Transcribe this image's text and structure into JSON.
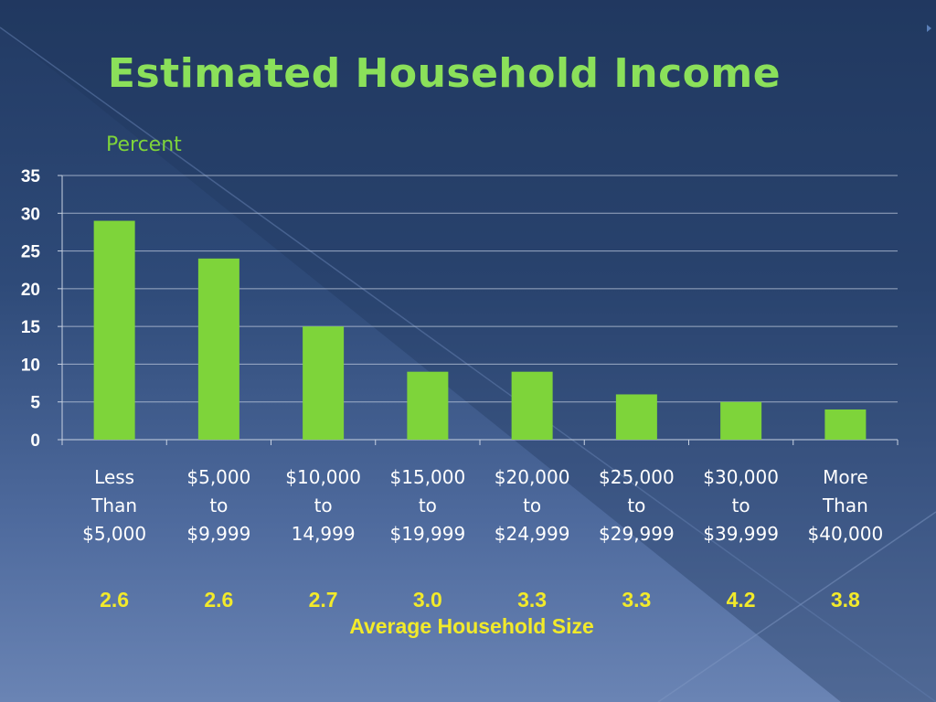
{
  "slide": {
    "title": "Estimated Household Income",
    "subtitle_label": "Average Household Size",
    "accent_color": "#7ed43a",
    "size_color": "#f2ea2a"
  },
  "chart_data": {
    "type": "bar",
    "ylabel": "Percent",
    "xlabel": "",
    "ylim": [
      0,
      35
    ],
    "yticks": [
      0,
      5,
      10,
      15,
      20,
      25,
      30,
      35
    ],
    "grid": true,
    "categories": [
      [
        "Less",
        "Than",
        "$5,000"
      ],
      [
        "$5,000",
        "to",
        "$9,999"
      ],
      [
        "$10,000",
        "to",
        "14,999"
      ],
      [
        "$15,000",
        "to",
        "$19,999"
      ],
      [
        "$20,000",
        "to",
        "$24,999"
      ],
      [
        "$25,000",
        "to",
        "$29,999"
      ],
      [
        "$30,000",
        "to",
        "$39,999"
      ],
      [
        "More",
        "Than",
        "$40,000"
      ]
    ],
    "values": [
      29,
      24,
      15,
      9,
      9,
      6,
      5,
      4
    ],
    "household_size": [
      "2.6",
      "2.6",
      "2.7",
      "3.0",
      "3.3",
      "3.3",
      "4.2",
      "3.8"
    ]
  }
}
